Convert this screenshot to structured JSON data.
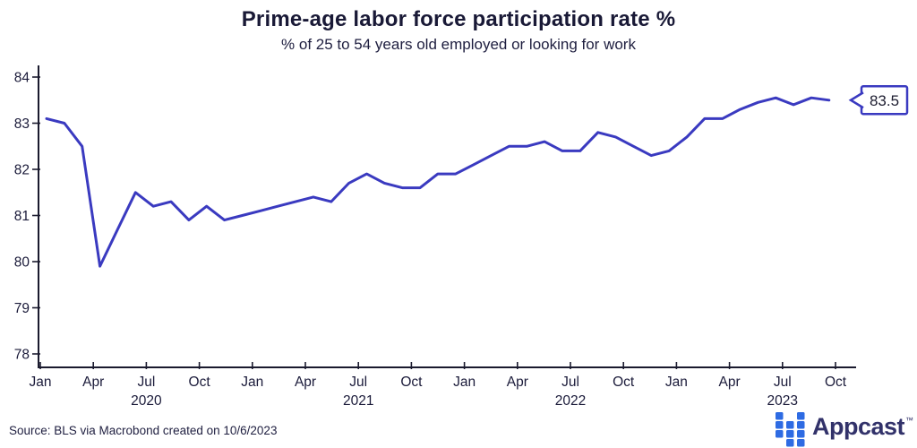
{
  "header": {
    "title": "Prime-age labor force participation rate %",
    "subtitle": "% of 25 to 54 years old employed or looking for work"
  },
  "chart_data": {
    "type": "line",
    "title": "Prime-age labor force participation rate %",
    "subtitle": "% of 25 to 54 years old employed or looking for work",
    "x": [
      "2020-01",
      "2020-02",
      "2020-03",
      "2020-04",
      "2020-05",
      "2020-06",
      "2020-07",
      "2020-08",
      "2020-09",
      "2020-10",
      "2020-11",
      "2020-12",
      "2021-01",
      "2021-02",
      "2021-03",
      "2021-04",
      "2021-05",
      "2021-06",
      "2021-07",
      "2021-08",
      "2021-09",
      "2021-10",
      "2021-11",
      "2021-12",
      "2022-01",
      "2022-02",
      "2022-03",
      "2022-04",
      "2022-05",
      "2022-06",
      "2022-07",
      "2022-08",
      "2022-09",
      "2022-10",
      "2022-11",
      "2022-12",
      "2023-01",
      "2023-02",
      "2023-03",
      "2023-04",
      "2023-05",
      "2023-06",
      "2023-07",
      "2023-08",
      "2023-09"
    ],
    "values": [
      83.1,
      83.0,
      82.5,
      79.9,
      80.7,
      81.5,
      81.2,
      81.3,
      80.9,
      81.2,
      80.9,
      81.0,
      81.1,
      81.2,
      81.3,
      81.4,
      81.3,
      81.7,
      81.9,
      81.7,
      81.6,
      81.6,
      81.9,
      81.9,
      82.1,
      82.3,
      82.5,
      82.5,
      82.6,
      82.4,
      82.4,
      82.8,
      82.7,
      82.5,
      82.3,
      82.4,
      82.7,
      83.1,
      83.1,
      83.3,
      83.45,
      83.55,
      83.4,
      83.55,
      83.5
    ],
    "ylim": [
      78,
      84
    ],
    "yticks": [
      "84",
      "83",
      "82",
      "81",
      "80",
      "79",
      "78"
    ],
    "ytick_values": [
      84,
      83,
      82,
      81,
      80,
      79,
      78
    ],
    "xtick_labels": [
      "Jan",
      "Apr",
      "Jul",
      "Oct",
      "Jan",
      "Apr",
      "Jul",
      "Oct",
      "Jan",
      "Apr",
      "Jul",
      "Oct",
      "Jan",
      "Apr",
      "Jul",
      "Oct"
    ],
    "year_labels": [
      "2020",
      "2021",
      "2022",
      "2023"
    ],
    "grid": false,
    "legend": "none",
    "last_value_label": "83.5",
    "line_color": "#3a3ac0",
    "axis_color": "#1a1a2e",
    "callout_border_color": "#3a3ac0"
  },
  "footer": {
    "source": "Source: BLS via Macrobond created on 10/6/2023",
    "logo_text": "Appcast",
    "trademark": "™",
    "logo_square_color": "#2e6be3",
    "logo_text_color": "#32326a"
  }
}
